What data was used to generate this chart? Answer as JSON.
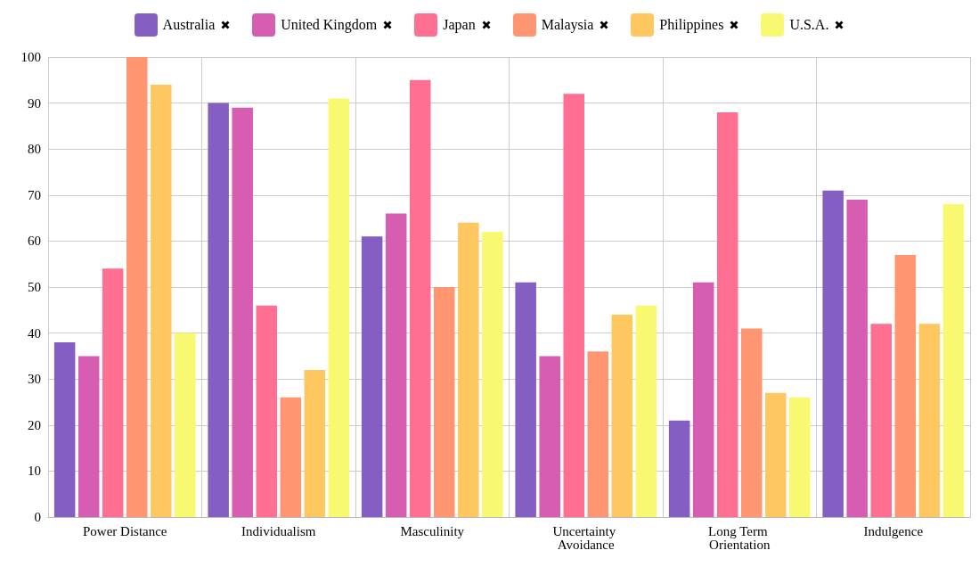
{
  "chart_data": {
    "type": "bar",
    "categories": [
      "Power Distance",
      "Individualism",
      "Masculinity",
      "Uncertainty Avoidance",
      "Long Term Orientation",
      "Indulgence"
    ],
    "series": [
      {
        "name": "Australia",
        "color": "#845ec2",
        "values": [
          38,
          90,
          61,
          51,
          21,
          71
        ]
      },
      {
        "name": "United Kingdom",
        "color": "#d65db1",
        "values": [
          35,
          89,
          66,
          35,
          51,
          69
        ]
      },
      {
        "name": "Japan",
        "color": "#ff6f91",
        "values": [
          54,
          46,
          95,
          92,
          88,
          42
        ]
      },
      {
        "name": "Malaysia",
        "color": "#ff9671",
        "values": [
          100,
          26,
          50,
          36,
          41,
          57
        ]
      },
      {
        "name": "Philippines",
        "color": "#ffc75f",
        "values": [
          94,
          32,
          64,
          44,
          27,
          42
        ]
      },
      {
        "name": "U.S.A.",
        "color": "#f9f871",
        "values": [
          40,
          91,
          62,
          46,
          26,
          68
        ]
      }
    ],
    "ylim": [
      0,
      100
    ],
    "yticks": [
      0,
      10,
      20,
      30,
      40,
      50,
      60,
      70,
      80,
      90,
      100
    ],
    "grid": true,
    "legend": "top"
  }
}
